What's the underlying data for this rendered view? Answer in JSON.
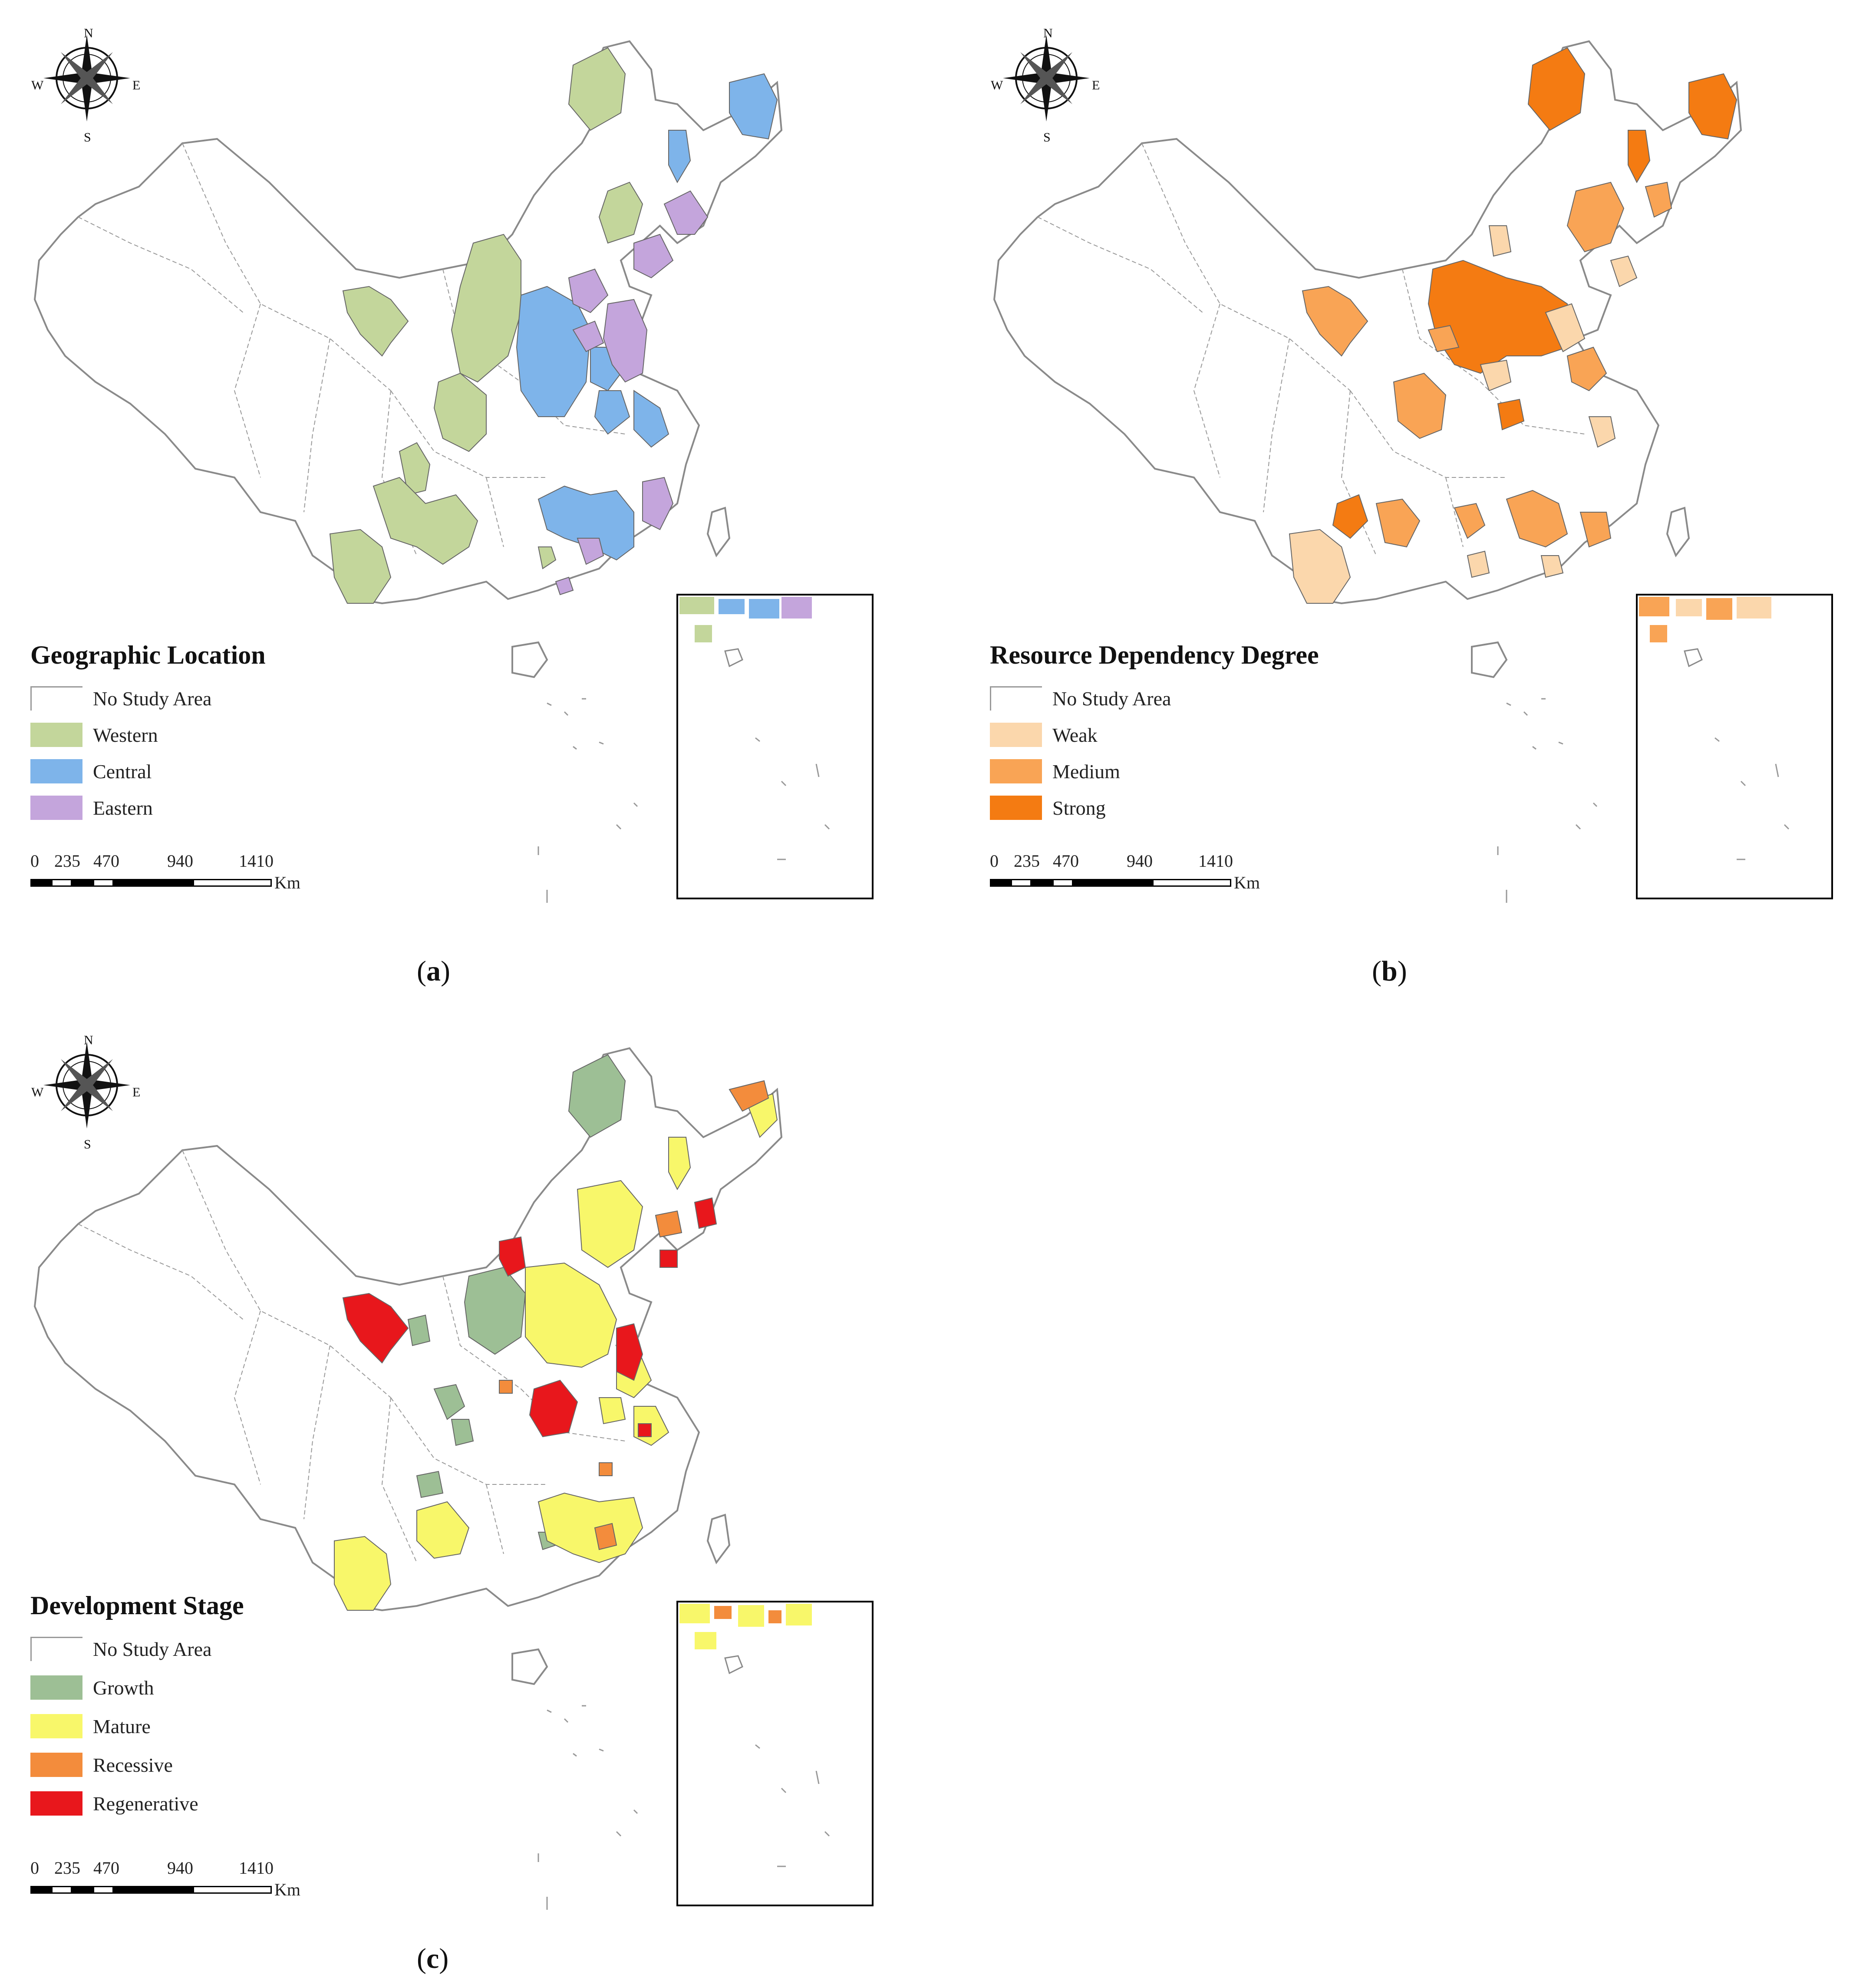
{
  "panels": [
    {
      "id": "a",
      "legend_title": "Geographic Location",
      "legend": [
        {
          "label": "No Study Area",
          "color": "#ffffff"
        },
        {
          "label": "Western",
          "color": "#c3d69b"
        },
        {
          "label": "Central",
          "color": "#7eb4ea"
        },
        {
          "label": "Eastern",
          "color": "#c4a5dc"
        }
      ],
      "caption_letter": "a"
    },
    {
      "id": "b",
      "legend_title": "Resource Dependency Degree",
      "legend": [
        {
          "label": "No Study Area",
          "color": "#ffffff"
        },
        {
          "label": "Weak",
          "color": "#fbd7ac"
        },
        {
          "label": "Medium",
          "color": "#f9a455"
        },
        {
          "label": "Strong",
          "color": "#f47b12"
        }
      ],
      "caption_letter": "b"
    },
    {
      "id": "c",
      "legend_title": "Development Stage",
      "legend": [
        {
          "label": "No Study Area",
          "color": "#ffffff"
        },
        {
          "label": "Growth",
          "color": "#9dbf95"
        },
        {
          "label": "Mature",
          "color": "#f8f76a"
        },
        {
          "label": "Recessive",
          "color": "#f38c3c"
        },
        {
          "label": "Regenerative",
          "color": "#e8171c"
        }
      ],
      "caption_letter": "c"
    }
  ],
  "compass": {
    "n": "N",
    "s": "S",
    "e": "E",
    "w": "W"
  },
  "scale_bar": {
    "labels": [
      "0",
      "235",
      "470",
      "940",
      "1410"
    ],
    "unit": "Km"
  },
  "colors": {
    "boundary": "#8a8a8a",
    "inset_frame": "#000000"
  }
}
